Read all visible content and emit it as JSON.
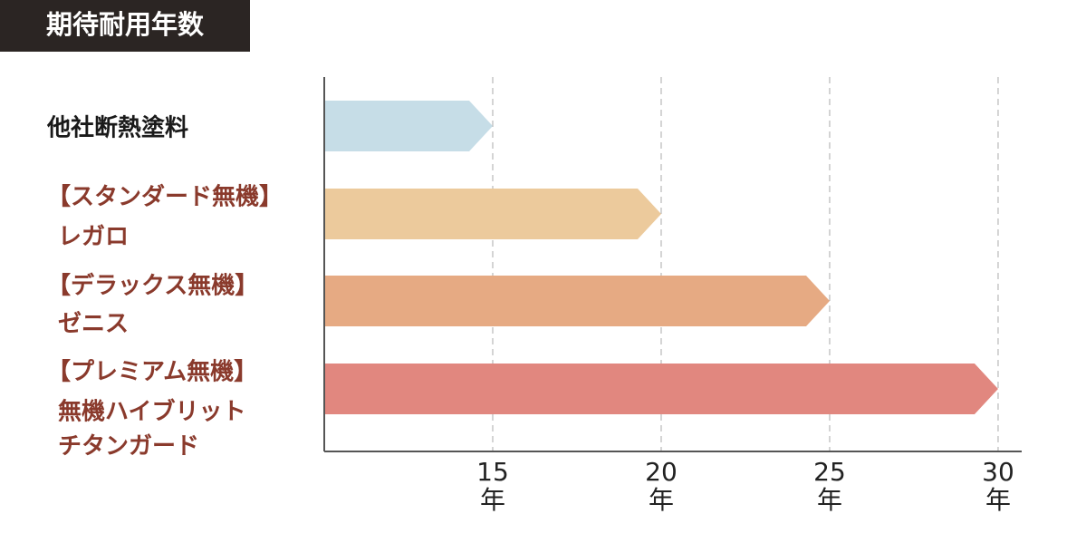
{
  "chart_data": {
    "type": "arrow-bar",
    "title": "期待耐用年数",
    "categories": [
      [
        "他社断熱塗料"
      ],
      [
        "【スタンダード無機】",
        "レガロ"
      ],
      [
        "【デラックス無機】",
        "ゼニス"
      ],
      [
        "【プレミアム無機】",
        "無機ハイブリット",
        "チタンガード"
      ]
    ],
    "category_colors": [
      "#1a1a1a",
      "#8a3a2c",
      "#8a3a2c",
      "#8a3a2c"
    ],
    "values": [
      15,
      20,
      25,
      30
    ],
    "colors": [
      "#c6dde7",
      "#ecca9c",
      "#e6aa83",
      "#e1877f"
    ],
    "xlim": [
      10,
      30.7
    ],
    "xticks": [
      15,
      20,
      25,
      30
    ],
    "x_unit": "年",
    "grid": true
  }
}
